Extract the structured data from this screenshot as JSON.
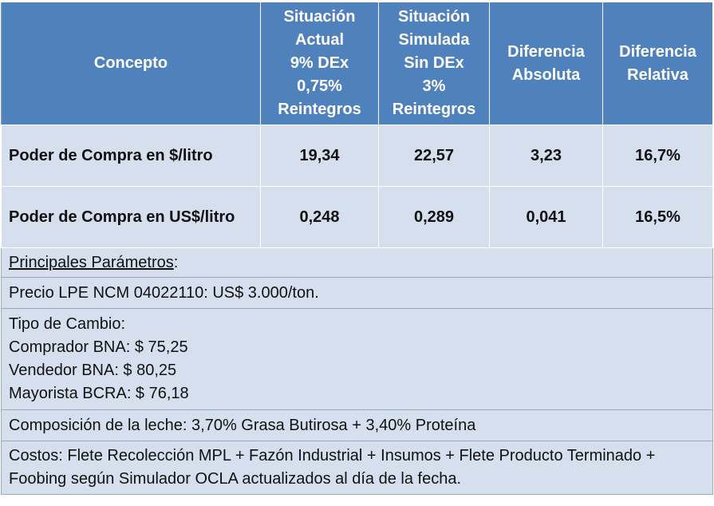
{
  "header": {
    "concepto": "Concepto",
    "col1": [
      "Situación",
      "Actual",
      "9% DEx",
      "0,75%",
      "Reintegros"
    ],
    "col2": [
      "Situación",
      "Simulada",
      "Sin DEx",
      "3%",
      "Reintegros"
    ],
    "col3": [
      "Diferencia",
      "Absoluta"
    ],
    "col4": [
      "Diferencia",
      "Relativa"
    ]
  },
  "rows": [
    {
      "label": "Poder de Compra en $/litro",
      "actual": "19,34",
      "simulada": "22,57",
      "abs": "3,23",
      "rel": "16,7%"
    },
    {
      "label": "Poder de Compra en US$/litro",
      "actual": "0,248",
      "simulada": "0,289",
      "abs": "0,041",
      "rel": "16,5%"
    }
  ],
  "params": {
    "title": "Principales Parámetros",
    "title_suffix": ":",
    "precio": "Precio LPE NCM 04022110:  US$ 3.000/ton.",
    "tipo_cambio": [
      "Tipo de Cambio:",
      "Comprador BNA: $ 75,25",
      "Vendedor BNA: $ 80,25",
      "Mayorista BCRA: $ 76,18"
    ],
    "composicion": "Composición de la leche: 3,70% Grasa Butirosa + 3,40% Proteína",
    "costos": [
      "Costos: Flete Recolección MPL + Fazón Industrial + Insumos + Flete Producto Terminado +",
      "Foobing según Simulador OCLA actualizados al día de la fecha."
    ]
  },
  "colors": {
    "header_bg": "#4f81bd",
    "row_bg": "#d5dfee"
  }
}
